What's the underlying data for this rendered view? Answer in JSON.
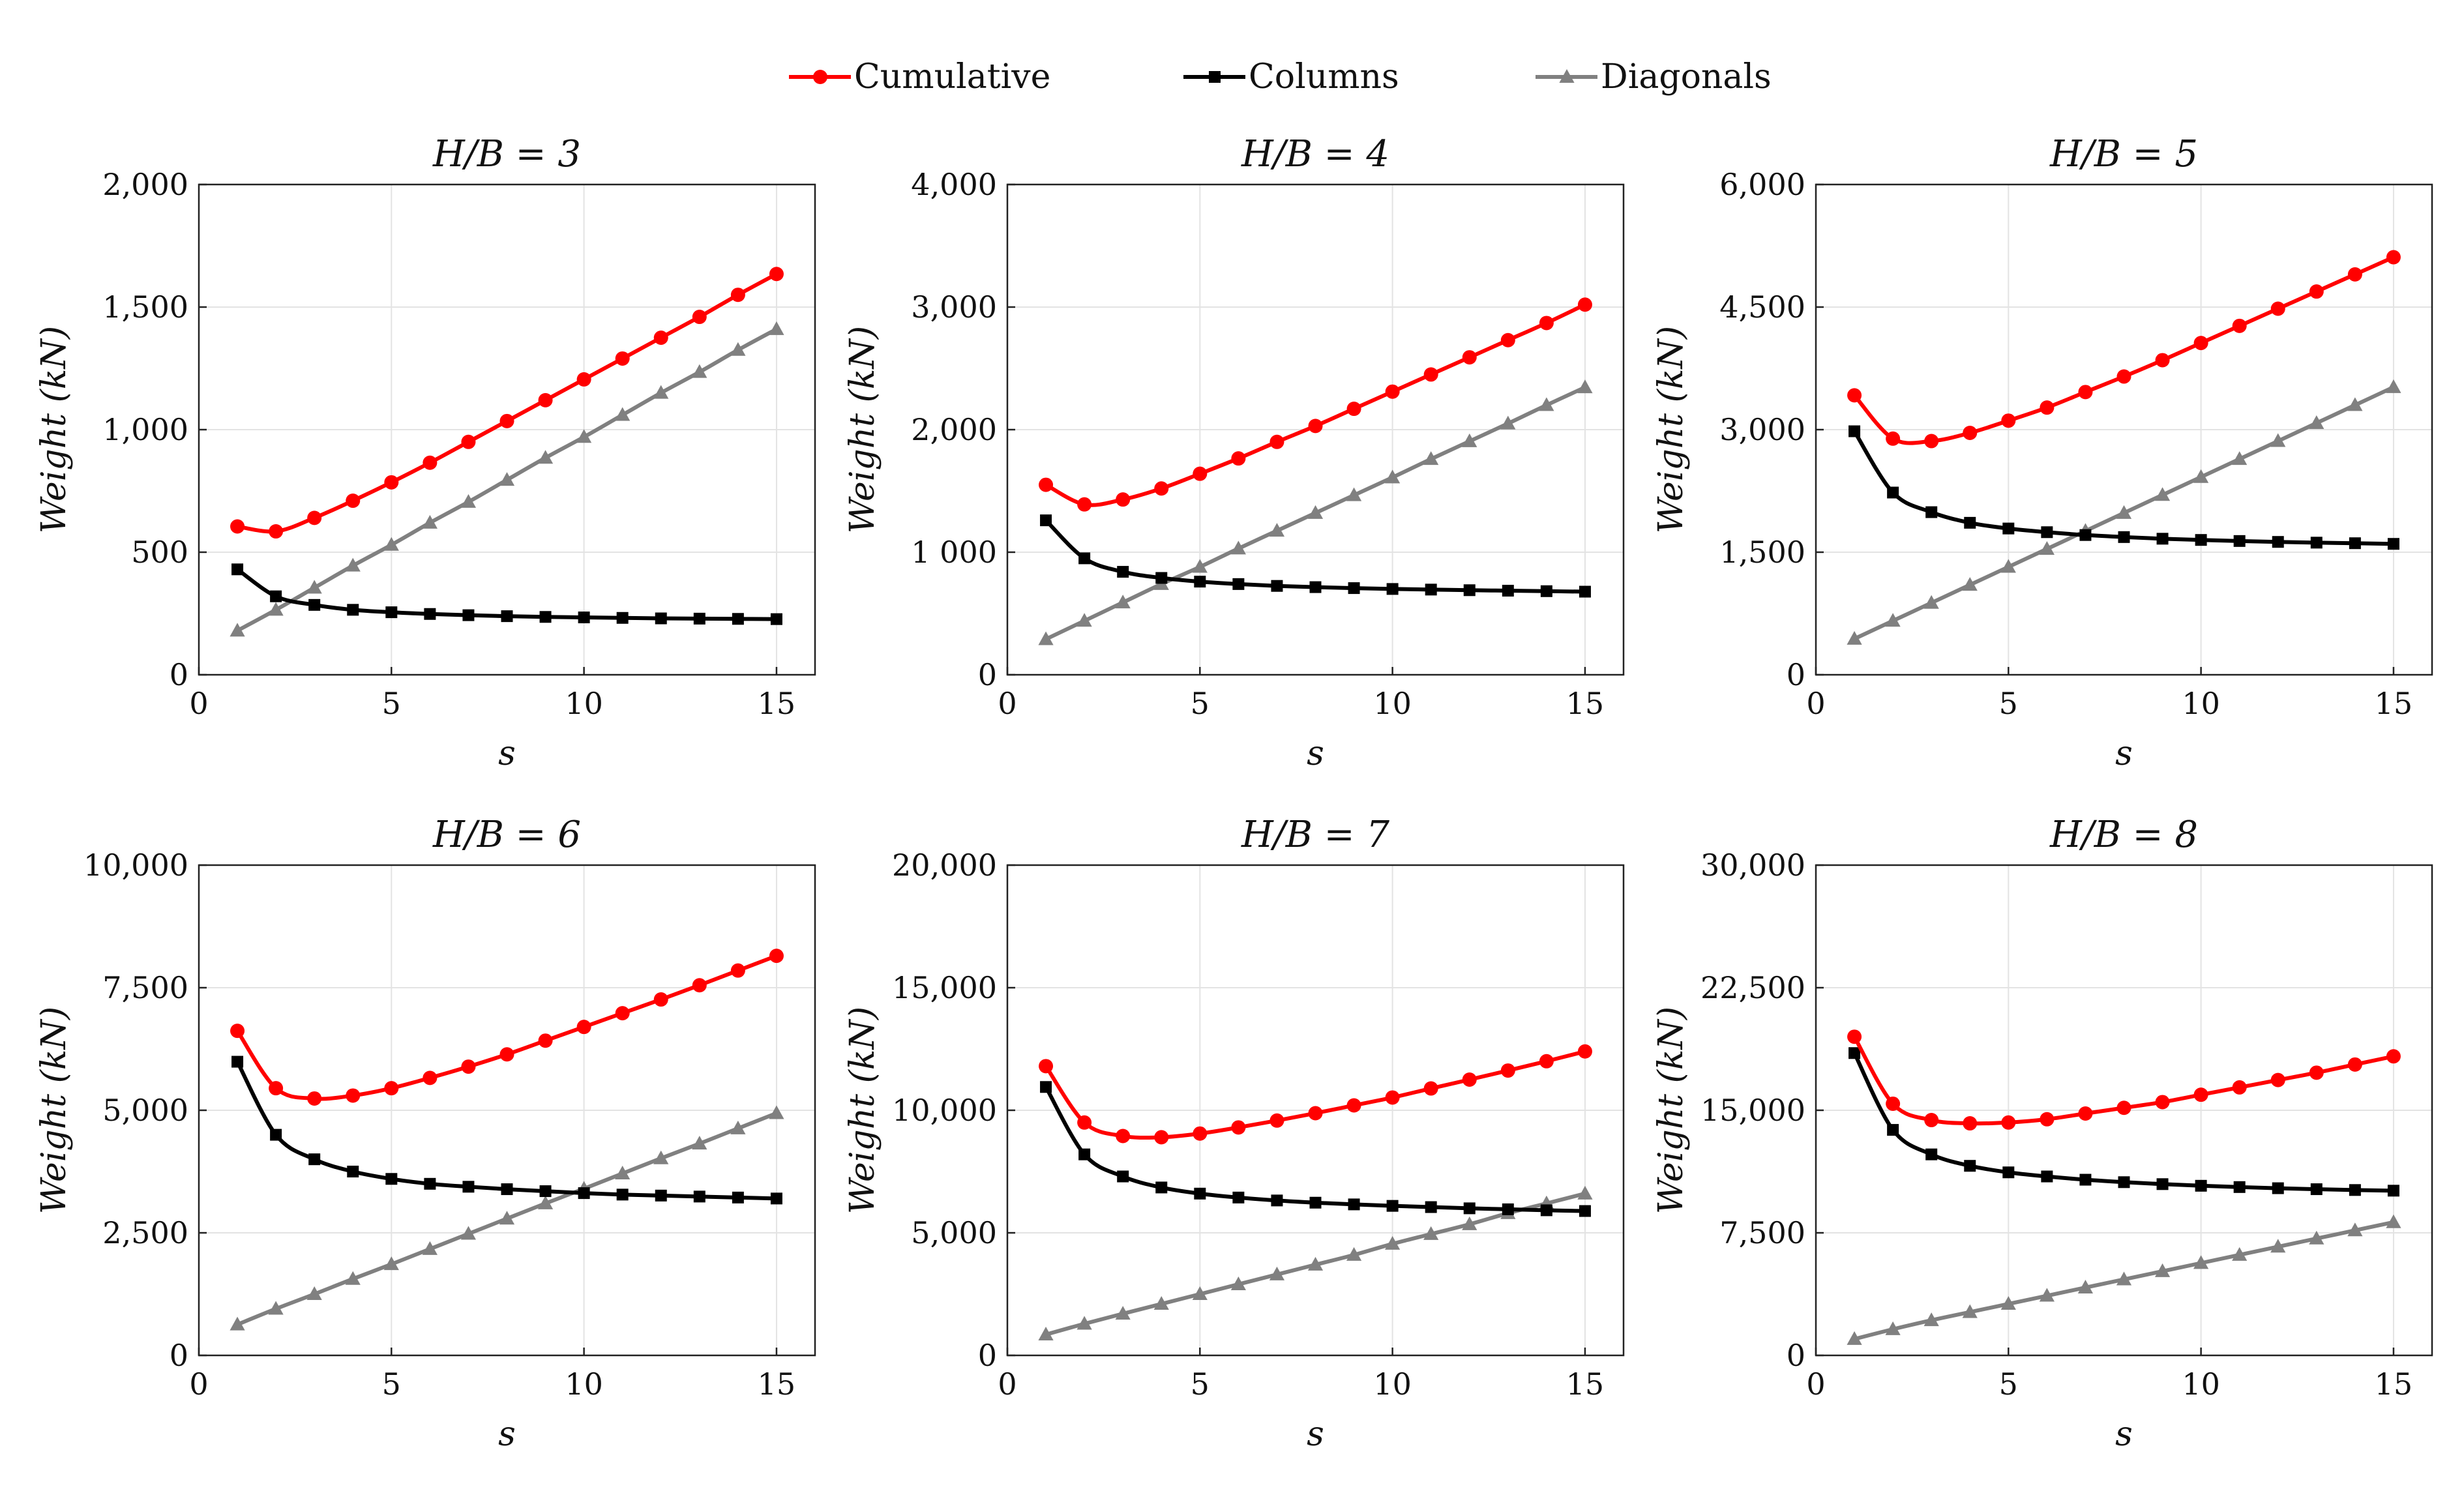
{
  "legend": {
    "items": [
      {
        "name": "Cumulative",
        "color": "#ff0000",
        "marker": "circle"
      },
      {
        "name": "Columns",
        "color": "#000000",
        "marker": "square"
      },
      {
        "name": "Diagonals",
        "color": "#808080",
        "marker": "triangle"
      }
    ]
  },
  "chart_data": [
    {
      "type": "line",
      "title": "H/B = 3",
      "xlabel": "s",
      "ylabel": "Weight (kN)",
      "xlim": [
        0,
        16
      ],
      "ylim": [
        0,
        2000
      ],
      "xticks": [
        0,
        5,
        10,
        15
      ],
      "yticks": [
        0,
        500,
        1000,
        1500,
        2000
      ],
      "ytick_labels": [
        "0",
        "500",
        "1,000",
        "1,500",
        "2,000"
      ],
      "x": [
        1,
        2,
        3,
        4,
        5,
        6,
        7,
        8,
        9,
        10,
        11,
        12,
        13,
        14,
        15
      ],
      "series": [
        {
          "name": "Cumulative",
          "values": [
            605,
            585,
            640,
            710,
            785,
            865,
            950,
            1035,
            1120,
            1205,
            1290,
            1375,
            1460,
            1550,
            1635
          ]
        },
        {
          "name": "Columns",
          "values": [
            430,
            320,
            285,
            265,
            255,
            248,
            243,
            239,
            236,
            234,
            232,
            230,
            229,
            228,
            227
          ]
        },
        {
          "name": "Diagonals",
          "values": [
            180,
            265,
            355,
            445,
            530,
            620,
            705,
            795,
            885,
            970,
            1060,
            1150,
            1235,
            1325,
            1410
          ]
        }
      ]
    },
    {
      "type": "line",
      "title": "H/B = 4",
      "xlabel": "s",
      "ylabel": "Weight (kN)",
      "xlim": [
        0,
        16
      ],
      "ylim": [
        0,
        4000
      ],
      "xticks": [
        0,
        5,
        10,
        15
      ],
      "yticks": [
        0,
        1000,
        2000,
        3000,
        4000
      ],
      "ytick_labels": [
        "0",
        "1 000",
        "2,000",
        "3,000",
        "4,000"
      ],
      "x": [
        1,
        2,
        3,
        4,
        5,
        6,
        7,
        8,
        9,
        10,
        11,
        12,
        13,
        14,
        15
      ],
      "series": [
        {
          "name": "Cumulative",
          "values": [
            1550,
            1390,
            1430,
            1520,
            1640,
            1765,
            1900,
            2030,
            2170,
            2310,
            2450,
            2590,
            2730,
            2870,
            3020
          ]
        },
        {
          "name": "Columns",
          "values": [
            1260,
            950,
            840,
            790,
            760,
            740,
            725,
            715,
            707,
            700,
            695,
            690,
            686,
            682,
            678
          ]
        },
        {
          "name": "Diagonals",
          "values": [
            290,
            440,
            590,
            740,
            880,
            1030,
            1175,
            1320,
            1465,
            1610,
            1760,
            1905,
            2050,
            2200,
            2345
          ]
        }
      ]
    },
    {
      "type": "line",
      "title": "H/B = 5",
      "xlabel": "s",
      "ylabel": "Weight (kN)",
      "xlim": [
        0,
        16
      ],
      "ylim": [
        0,
        6000
      ],
      "xticks": [
        0,
        5,
        10,
        15
      ],
      "yticks": [
        0,
        1500,
        3000,
        4500,
        6000
      ],
      "ytick_labels": [
        "0",
        "1,500",
        "3,000",
        "4,500",
        "6,000"
      ],
      "x": [
        1,
        2,
        3,
        4,
        5,
        6,
        7,
        8,
        9,
        10,
        11,
        12,
        13,
        14,
        15
      ],
      "series": [
        {
          "name": "Cumulative",
          "values": [
            3420,
            2890,
            2860,
            2960,
            3110,
            3270,
            3460,
            3650,
            3850,
            4060,
            4270,
            4480,
            4690,
            4900,
            5110
          ]
        },
        {
          "name": "Columns",
          "values": [
            2980,
            2230,
            1990,
            1860,
            1790,
            1745,
            1710,
            1685,
            1665,
            1650,
            1637,
            1626,
            1617,
            1610,
            1602
          ]
        },
        {
          "name": "Diagonals",
          "values": [
            440,
            660,
            880,
            1100,
            1320,
            1540,
            1760,
            1980,
            2200,
            2420,
            2640,
            2860,
            3080,
            3300,
            3520
          ]
        }
      ]
    },
    {
      "type": "line",
      "title": "H/B = 6",
      "xlabel": "s",
      "ylabel": "Weight (kN)",
      "xlim": [
        0,
        16
      ],
      "ylim": [
        0,
        10000
      ],
      "xticks": [
        0,
        5,
        10,
        15
      ],
      "yticks": [
        0,
        2500,
        5000,
        7500,
        10000
      ],
      "ytick_labels": [
        "0",
        "2,500",
        "5,000",
        "7,500",
        "10,000"
      ],
      "x": [
        1,
        2,
        3,
        4,
        5,
        6,
        7,
        8,
        9,
        10,
        11,
        12,
        13,
        14,
        15
      ],
      "series": [
        {
          "name": "Cumulative",
          "values": [
            6620,
            5450,
            5240,
            5300,
            5450,
            5660,
            5890,
            6140,
            6420,
            6700,
            6980,
            7260,
            7550,
            7850,
            8150
          ]
        },
        {
          "name": "Columns",
          "values": [
            5990,
            4500,
            4000,
            3750,
            3600,
            3500,
            3440,
            3390,
            3350,
            3310,
            3280,
            3260,
            3240,
            3220,
            3200
          ]
        },
        {
          "name": "Diagonals",
          "values": [
            630,
            950,
            1250,
            1560,
            1860,
            2170,
            2480,
            2790,
            3100,
            3400,
            3710,
            4020,
            4320,
            4630,
            4940
          ]
        }
      ]
    },
    {
      "type": "line",
      "title": "H/B = 7",
      "xlabel": "s",
      "ylabel": "Weight (kN)",
      "xlim": [
        0,
        16
      ],
      "ylim": [
        0,
        20000
      ],
      "xticks": [
        0,
        5,
        10,
        15
      ],
      "yticks": [
        0,
        5000,
        10000,
        15000,
        20000
      ],
      "ytick_labels": [
        "0",
        "5,000",
        "10,000",
        "15,000",
        "20,000"
      ],
      "x": [
        1,
        2,
        3,
        4,
        5,
        6,
        7,
        8,
        9,
        10,
        11,
        12,
        13,
        14,
        15
      ],
      "series": [
        {
          "name": "Cumulative",
          "values": [
            11800,
            9500,
            8950,
            8900,
            9050,
            9300,
            9580,
            9880,
            10200,
            10520,
            10890,
            11250,
            11620,
            12000,
            12400
          ]
        },
        {
          "name": "Columns",
          "values": [
            10950,
            8200,
            7300,
            6850,
            6600,
            6440,
            6320,
            6230,
            6160,
            6100,
            6050,
            6000,
            5960,
            5920,
            5890
          ]
        },
        {
          "name": "Diagonals",
          "values": [
            850,
            1290,
            1700,
            2100,
            2500,
            2900,
            3300,
            3700,
            4100,
            4550,
            4950,
            5350,
            5800,
            6200,
            6600
          ]
        }
      ]
    },
    {
      "type": "line",
      "title": "H/B = 8",
      "xlabel": "s",
      "ylabel": "Weight (kN)",
      "xlim": [
        0,
        16
      ],
      "ylim": [
        0,
        30000
      ],
      "xticks": [
        0,
        5,
        10,
        15
      ],
      "yticks": [
        0,
        7500,
        15000,
        22500,
        30000
      ],
      "ytick_labels": [
        "0",
        "7,500",
        "15,000",
        "22,500",
        "30,000"
      ],
      "x": [
        1,
        2,
        3,
        4,
        5,
        6,
        7,
        8,
        9,
        10,
        11,
        12,
        13,
        14,
        15
      ],
      "series": [
        {
          "name": "Cumulative",
          "values": [
            19500,
            15400,
            14400,
            14200,
            14250,
            14450,
            14800,
            15150,
            15500,
            15950,
            16400,
            16850,
            17300,
            17800,
            18300
          ]
        },
        {
          "name": "Columns",
          "values": [
            18500,
            13800,
            12300,
            11600,
            11200,
            10950,
            10750,
            10600,
            10480,
            10380,
            10300,
            10230,
            10170,
            10120,
            10080
          ]
        },
        {
          "name": "Diagonals",
          "values": [
            1000,
            1600,
            2150,
            2650,
            3150,
            3650,
            4150,
            4650,
            5150,
            5650,
            6150,
            6650,
            7150,
            7650,
            8150
          ]
        }
      ]
    }
  ]
}
